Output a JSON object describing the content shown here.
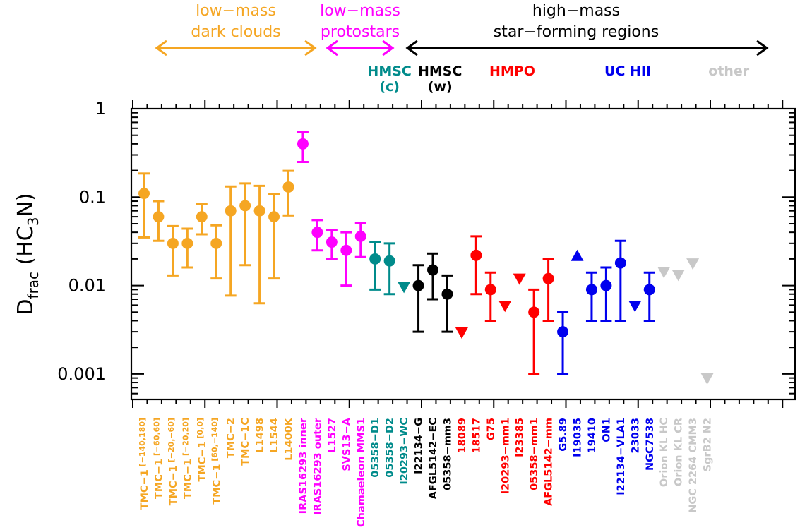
{
  "chart_data": {
    "type": "scatter",
    "y_scale": "log",
    "ylim": [
      0.0005,
      1
    ],
    "ylabel": "D_frac (HC3N)",
    "ylabel_main": "D",
    "ylabel_sub": "frac",
    "ylabel_paren": "(HC",
    "ylabel_sub3": "3",
    "ylabel_end": "N)",
    "yticks": [
      {
        "value": 1,
        "label": "1"
      },
      {
        "value": 0.1,
        "label": "0.1"
      },
      {
        "value": 0.01,
        "label": "0.01"
      },
      {
        "value": 0.001,
        "label": "0.001"
      }
    ],
    "colors": {
      "dark_clouds": "#f5a623",
      "protostars": "#ff00ff",
      "hmsc_c": "#008b8b",
      "hmsc_w": "#000000",
      "hmpo": "#ff0000",
      "ucHII": "#0000ee",
      "other": "#c8c8c8"
    },
    "group_headers": [
      {
        "key": "dark",
        "lines": [
          "low−mass",
          "dark clouds"
        ],
        "color": "#f5a623",
        "arrow": [
          0,
          11
        ]
      },
      {
        "key": "proto",
        "lines": [
          "low−mass",
          "protostars"
        ],
        "color": "#ff00ff",
        "arrow": [
          12,
          16
        ]
      },
      {
        "key": "high",
        "lines": [
          "high−mass",
          "star−forming regions"
        ],
        "color": "#000000",
        "arrow": [
          17,
          42
        ]
      }
    ],
    "subgroup_labels": [
      {
        "lines": [
          "HMSC",
          "(c)"
        ],
        "color": "#008b8b",
        "center": 18
      },
      {
        "lines": [
          "HMSC",
          "(w)"
        ],
        "color": "#000000",
        "center": 21.5
      },
      {
        "lines": [
          "HMPO"
        ],
        "color": "#ff0000",
        "center": 26.5
      },
      {
        "lines": [
          "UC  HII"
        ],
        "color": "#0000ee",
        "center": 34.5
      },
      {
        "lines": [
          "other"
        ],
        "color": "#c8c8c8",
        "center": 41.5
      }
    ],
    "points": [
      {
        "label": "TMC−1",
        "sub": "[−140,180]",
        "x": 1,
        "y": 0.11,
        "lo": 0.035,
        "hi": 0.185,
        "kind": "point",
        "group": "dark_clouds"
      },
      {
        "label": "TMC−1",
        "sub": "[−60,60]",
        "x": 2,
        "y": 0.06,
        "lo": 0.032,
        "hi": 0.09,
        "kind": "point",
        "group": "dark_clouds"
      },
      {
        "label": "TMC−1",
        "sub": "[−20,−60]",
        "x": 3,
        "y": 0.03,
        "lo": 0.013,
        "hi": 0.047,
        "kind": "point",
        "group": "dark_clouds"
      },
      {
        "label": "TMC−1",
        "sub": "[−20,20]",
        "x": 4,
        "y": 0.03,
        "lo": 0.016,
        "hi": 0.044,
        "kind": "point",
        "group": "dark_clouds"
      },
      {
        "label": "TMC−1",
        "sub": "[0,0]",
        "x": 5,
        "y": 0.06,
        "lo": 0.038,
        "hi": 0.083,
        "kind": "point",
        "group": "dark_clouds"
      },
      {
        "label": "TMC−1",
        "sub": "[60,−140]",
        "x": 6,
        "y": 0.03,
        "lo": 0.012,
        "hi": 0.048,
        "kind": "point",
        "group": "dark_clouds"
      },
      {
        "label": "TMC−2",
        "sub": "",
        "x": 7,
        "y": 0.07,
        "lo": 0.0077,
        "hi": 0.132,
        "kind": "point",
        "group": "dark_clouds"
      },
      {
        "label": "TMC−1C",
        "sub": "",
        "x": 8,
        "y": 0.08,
        "lo": 0.017,
        "hi": 0.143,
        "kind": "point",
        "group": "dark_clouds"
      },
      {
        "label": "L1498",
        "sub": "",
        "x": 9,
        "y": 0.07,
        "lo": 0.0063,
        "hi": 0.134,
        "kind": "point",
        "group": "dark_clouds"
      },
      {
        "label": "L1544",
        "sub": "",
        "x": 10,
        "y": 0.06,
        "lo": 0.012,
        "hi": 0.108,
        "kind": "point",
        "group": "dark_clouds"
      },
      {
        "label": "L1400K",
        "sub": "",
        "x": 11,
        "y": 0.13,
        "lo": 0.062,
        "hi": 0.198,
        "kind": "point",
        "group": "dark_clouds"
      },
      {
        "label": "IRAS16293 inner",
        "sub": "",
        "x": 12,
        "y": 0.4,
        "lo": 0.25,
        "hi": 0.55,
        "kind": "point",
        "group": "protostars"
      },
      {
        "label": "IRAS16293 outer",
        "sub": "",
        "x": 13,
        "y": 0.04,
        "lo": 0.025,
        "hi": 0.055,
        "kind": "point",
        "group": "protostars"
      },
      {
        "label": "L1527",
        "sub": "",
        "x": 14,
        "y": 0.031,
        "lo": 0.02,
        "hi": 0.042,
        "kind": "point",
        "group": "protostars"
      },
      {
        "label": "SVS13−A",
        "sub": "",
        "x": 15,
        "y": 0.025,
        "lo": 0.01,
        "hi": 0.04,
        "kind": "point",
        "group": "protostars"
      },
      {
        "label": "Chamaeleon MMS1",
        "sub": "",
        "x": 16,
        "y": 0.036,
        "lo": 0.021,
        "hi": 0.051,
        "kind": "point",
        "group": "protostars"
      },
      {
        "label": "05358−D1",
        "sub": "",
        "x": 17,
        "y": 0.02,
        "lo": 0.009,
        "hi": 0.031,
        "kind": "point",
        "group": "hmsc_c"
      },
      {
        "label": "05358−D2",
        "sub": "",
        "x": 18,
        "y": 0.019,
        "lo": 0.008,
        "hi": 0.03,
        "kind": "point",
        "group": "hmsc_c"
      },
      {
        "label": "I20293−WC",
        "sub": "",
        "x": 19,
        "y": 0.0095,
        "kind": "upper",
        "group": "hmsc_c"
      },
      {
        "label": "I22134−G",
        "sub": "",
        "x": 20,
        "y": 0.01,
        "lo": 0.003,
        "hi": 0.017,
        "kind": "point",
        "group": "hmsc_w"
      },
      {
        "label": "AFGL5142−EC",
        "sub": "",
        "x": 21,
        "y": 0.015,
        "lo": 0.007,
        "hi": 0.023,
        "kind": "point",
        "group": "hmsc_w"
      },
      {
        "label": "05358−mm3",
        "sub": "",
        "x": 22,
        "y": 0.008,
        "lo": 0.003,
        "hi": 0.013,
        "kind": "point",
        "group": "hmsc_w"
      },
      {
        "label": "18089",
        "sub": "",
        "x": 23,
        "y": 0.0029,
        "kind": "upper",
        "group": "hmpo"
      },
      {
        "label": "18517",
        "sub": "",
        "x": 24,
        "y": 0.022,
        "lo": 0.008,
        "hi": 0.036,
        "kind": "point",
        "group": "hmpo"
      },
      {
        "label": "G75",
        "sub": "",
        "x": 25,
        "y": 0.009,
        "lo": 0.004,
        "hi": 0.014,
        "kind": "point",
        "group": "hmpo"
      },
      {
        "label": "I20293−mm1",
        "sub": "",
        "x": 26,
        "y": 0.0058,
        "kind": "upper",
        "group": "hmpo"
      },
      {
        "label": "I23385",
        "sub": "",
        "x": 27,
        "y": 0.0118,
        "kind": "upper",
        "group": "hmpo"
      },
      {
        "label": "05358−mm1",
        "sub": "",
        "x": 28,
        "y": 0.005,
        "lo": 0.001,
        "hi": 0.009,
        "kind": "point",
        "group": "hmpo"
      },
      {
        "label": "AFGL5142−mm",
        "sub": "",
        "x": 29,
        "y": 0.012,
        "lo": 0.004,
        "hi": 0.02,
        "kind": "point",
        "group": "hmpo"
      },
      {
        "label": "G5.89",
        "sub": "",
        "x": 30,
        "y": 0.003,
        "lo": 0.001,
        "hi": 0.005,
        "kind": "point",
        "group": "ucHII"
      },
      {
        "label": "I19035",
        "sub": "",
        "x": 31,
        "y": 0.022,
        "kind": "lower",
        "group": "ucHII"
      },
      {
        "label": "19410",
        "sub": "",
        "x": 32,
        "y": 0.009,
        "lo": 0.004,
        "hi": 0.014,
        "kind": "point",
        "group": "ucHII"
      },
      {
        "label": "ON1",
        "sub": "",
        "x": 33,
        "y": 0.01,
        "lo": 0.004,
        "hi": 0.016,
        "kind": "point",
        "group": "ucHII"
      },
      {
        "label": "I22134−VLA1",
        "sub": "",
        "x": 34,
        "y": 0.018,
        "lo": 0.004,
        "hi": 0.032,
        "kind": "point",
        "group": "ucHII"
      },
      {
        "label": "23033",
        "sub": "",
        "x": 35,
        "y": 0.0058,
        "kind": "upper",
        "group": "ucHII"
      },
      {
        "label": "NGC7538",
        "sub": "",
        "x": 36,
        "y": 0.009,
        "lo": 0.004,
        "hi": 0.014,
        "kind": "point",
        "group": "ucHII"
      },
      {
        "label": "Orion KL HC",
        "sub": "",
        "x": 37,
        "y": 0.014,
        "kind": "upper",
        "group": "other"
      },
      {
        "label": "Orion KL CR",
        "sub": "",
        "x": 38,
        "y": 0.013,
        "kind": "upper",
        "group": "other"
      },
      {
        "label": "NGC 2264 CMM3",
        "sub": "",
        "x": 39,
        "y": 0.0175,
        "kind": "upper",
        "group": "other"
      },
      {
        "label": "SgrB2 N2",
        "sub": "",
        "x": 40,
        "y": 0.00088,
        "kind": "upper",
        "group": "other"
      }
    ]
  }
}
